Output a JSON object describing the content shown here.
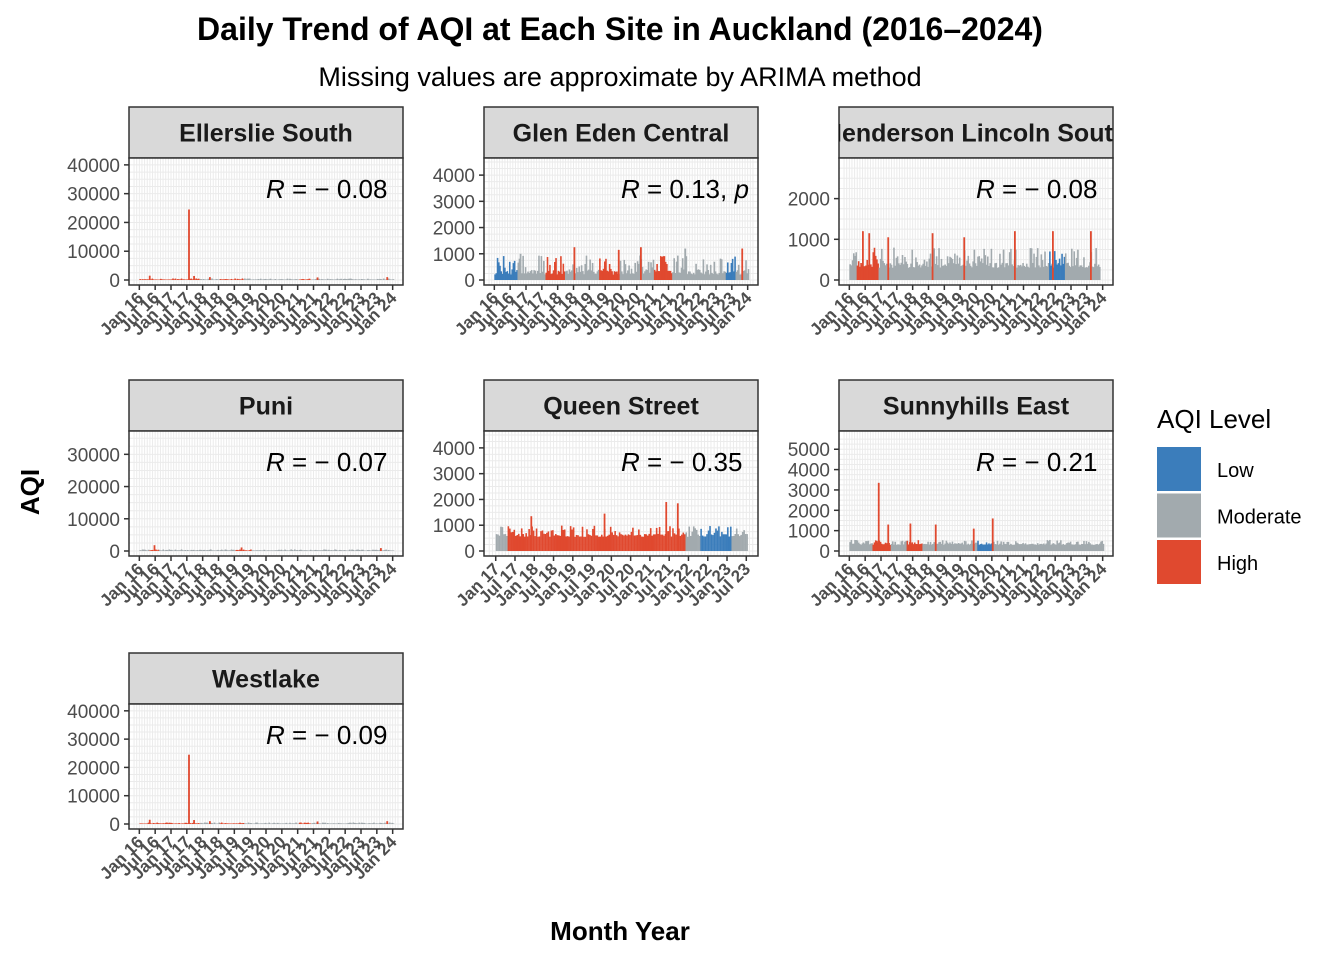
{
  "chart_data": {
    "type": "bar",
    "title": "Daily Trend of AQI at Each Site in Auckland (2016–2024)",
    "subtitle": "Missing values are approximate by ARIMA method",
    "xlabel": "Month Year",
    "ylabel": "AQI",
    "grid": true,
    "legend": {
      "title": "AQI Level",
      "placement": "right",
      "items": [
        {
          "label": "Low",
          "color": "#3b7dbb"
        },
        {
          "label": "Moderate",
          "color": "#a2aaae"
        },
        {
          "label": "High",
          "color": "#e0492f"
        }
      ]
    },
    "panels": [
      {
        "site": "Ellerslie South",
        "annotation": {
          "italic": "R",
          "rest": " = − 0.08"
        },
        "ylim": [
          0,
          41000
        ],
        "yticks": [
          0,
          10000,
          20000,
          30000,
          40000
        ],
        "xlim": [
          2015.8,
          2024.2
        ],
        "xticks": [
          "Jan 16",
          "Jul 16",
          "Jan 17",
          "Jul 17",
          "Jan 18",
          "Jul 18",
          "Jan 19",
          "Jul 19",
          "Jan 20",
          "Jul 20",
          "Jan 21",
          "Jul 21",
          "Jan 22",
          "Jul 22",
          "Jan 23",
          "Jul 23",
          "Jan 24"
        ],
        "xtick_start": 2016,
        "bars": {
          "start": 2016.0,
          "end": 2024.0,
          "baseline": 150,
          "spread": 400,
          "levels": [
            [
              2016.0,
              "high"
            ],
            [
              2017.9,
              "moderate"
            ],
            [
              2018.5,
              "high"
            ],
            [
              2019.3,
              "moderate"
            ],
            [
              2021.0,
              "high"
            ],
            [
              2021.4,
              "moderate"
            ]
          ],
          "spikes": [
            [
              2016.3,
              1500,
              "high"
            ],
            [
              2017.54,
              24500,
              "high"
            ],
            [
              2017.7,
              1400,
              "high"
            ],
            [
              2018.2,
              1000,
              "high"
            ],
            [
              2021.6,
              900,
              "high"
            ],
            [
              2023.8,
              1000,
              "high"
            ]
          ]
        }
      },
      {
        "site": "Glen Eden Central",
        "annotation": {
          "italic": "R",
          "rest": " = 0.13, ",
          "tail": "p"
        },
        "ylim": [
          0,
          4500
        ],
        "yticks": [
          0,
          1000,
          2000,
          3000,
          4000
        ],
        "xlim": [
          2015.8,
          2024.2
        ],
        "xticks": [
          "Jan 16",
          "Jul 16",
          "Jan 17",
          "Jul 17",
          "Jan 18",
          "Jul 18",
          "Jan 19",
          "Jul 19",
          "Jan 20",
          "Jul 20",
          "Jan 21",
          "Jul 21",
          "Jan 22",
          "Jul 22",
          "Jan 23",
          "Jul 23",
          "Jan 24"
        ],
        "xtick_start": 2016,
        "bars": {
          "start": 2016.0,
          "end": 2024.0,
          "baseline": 200,
          "spread": 750,
          "levels": [
            [
              2016.0,
              "low"
            ],
            [
              2016.7,
              "moderate"
            ],
            [
              2017.6,
              "high"
            ],
            [
              2018.2,
              "moderate"
            ],
            [
              2019.3,
              "high"
            ],
            [
              2019.9,
              "moderate"
            ],
            [
              2021.0,
              "high"
            ],
            [
              2021.6,
              "moderate"
            ],
            [
              2023.3,
              "low"
            ],
            [
              2023.6,
              "moderate"
            ]
          ],
          "spikes": [
            [
              2016.8,
              1000,
              "moderate"
            ],
            [
              2018.5,
              1250,
              "high"
            ],
            [
              2019.9,
              1150,
              "high"
            ],
            [
              2020.6,
              1250,
              "high"
            ],
            [
              2022.0,
              1200,
              "moderate"
            ],
            [
              2023.8,
              1200,
              "high"
            ]
          ]
        }
      },
      {
        "site": "Henderson Lincoln South",
        "annotation": {
          "italic": "R",
          "rest": " = − 0.08"
        },
        "ylim": [
          0,
          2900
        ],
        "yticks": [
          0,
          1000,
          2000
        ],
        "xlim": [
          2015.8,
          2024.2
        ],
        "xticks": [
          "Jan 16",
          "Jul 16",
          "Jan 17",
          "Jul 17",
          "Jan 18",
          "Jul 18",
          "Jan 19",
          "Jul 19",
          "Jan 20",
          "Jul 20",
          "Jan 21",
          "Jul 21",
          "Jan 22",
          "Jul 22",
          "Jan 23",
          "Jul 23",
          "Jan 24"
        ],
        "xtick_start": 2016,
        "bars": {
          "start": 2016.0,
          "end": 2023.9,
          "baseline": 300,
          "spread": 500,
          "levels": [
            [
              2016.0,
              "moderate"
            ],
            [
              2016.2,
              "high"
            ],
            [
              2016.9,
              "moderate"
            ],
            [
              2022.3,
              "low"
            ],
            [
              2022.8,
              "moderate"
            ]
          ],
          "spikes": [
            [
              2016.4,
              1200,
              "high"
            ],
            [
              2016.6,
              1150,
              "high"
            ],
            [
              2017.2,
              1050,
              "high"
            ],
            [
              2018.6,
              1150,
              "high"
            ],
            [
              2019.6,
              1050,
              "high"
            ],
            [
              2021.2,
              1200,
              "high"
            ],
            [
              2022.4,
              1200,
              "high"
            ],
            [
              2023.6,
              1200,
              "high"
            ]
          ]
        }
      },
      {
        "site": "Puni",
        "annotation": {
          "italic": "R",
          "rest": " = − 0.07"
        },
        "ylim": [
          0,
          36000
        ],
        "yticks": [
          0,
          10000,
          20000,
          30000
        ],
        "xlim": [
          2015.8,
          2024.2
        ],
        "xticks": [
          "Jan 16",
          "Jul 16",
          "Jan 17",
          "Jul 17",
          "Jan 18",
          "Jul 18",
          "Jan 19",
          "Jul 19",
          "Jan 20",
          "Jul 20",
          "Jan 21",
          "Jul 21",
          "Jan 22",
          "Jul 22",
          "Jan 23",
          "Jul 23",
          "Jan 24"
        ],
        "xtick_start": 2016,
        "bars": {
          "start": 2016.0,
          "end": 2024.0,
          "baseline": 150,
          "spread": 350,
          "levels": [
            [
              2016.0,
              "moderate"
            ],
            [
              2016.3,
              "high"
            ],
            [
              2016.6,
              "moderate"
            ],
            [
              2019.0,
              "high"
            ],
            [
              2019.5,
              "moderate"
            ]
          ],
          "spikes": [
            [
              2016.45,
              1800,
              "high"
            ],
            [
              2019.2,
              1100,
              "high"
            ],
            [
              2023.6,
              900,
              "high"
            ]
          ]
        }
      },
      {
        "site": "Queen Street",
        "annotation": {
          "italic": "R",
          "rest": " = − 0.35"
        },
        "ylim": [
          0,
          4500
        ],
        "yticks": [
          0,
          1000,
          2000,
          3000,
          4000
        ],
        "xlim": [
          2016.8,
          2023.7
        ],
        "xticks": [
          "Jan 17",
          "Jul 17",
          "Jan 18",
          "Jul 18",
          "Jan 19",
          "Jul 19",
          "Jan 20",
          "Jul 20",
          "Jan 21",
          "Jul 21",
          "Jan 22",
          "Jul 22",
          "Jan 23",
          "Jul 23"
        ],
        "xtick_start": 2017,
        "bars": {
          "start": 2017.0,
          "end": 2023.5,
          "baseline": 550,
          "spread": 450,
          "levels": [
            [
              2017.0,
              "moderate"
            ],
            [
              2017.3,
              "high"
            ],
            [
              2021.9,
              "moderate"
            ],
            [
              2022.3,
              "low"
            ],
            [
              2023.1,
              "moderate"
            ]
          ],
          "spikes": [
            [
              2017.9,
              1350,
              "high"
            ],
            [
              2019.8,
              1450,
              "high"
            ],
            [
              2021.4,
              1900,
              "high"
            ],
            [
              2021.7,
              1850,
              "high"
            ]
          ]
        }
      },
      {
        "site": "Sunnyhills East",
        "annotation": {
          "italic": "R",
          "rest": " = − 0.21"
        },
        "ylim": [
          0,
          5700
        ],
        "yticks": [
          0,
          1000,
          2000,
          3000,
          4000,
          5000
        ],
        "xlim": [
          2015.8,
          2024.2
        ],
        "xticks": [
          "Jan 16",
          "Jul 16",
          "Jan 17",
          "Jul 17",
          "Jan 18",
          "Jul 18",
          "Jan 19",
          "Jul 19",
          "Jan 20",
          "Jul 20",
          "Jan 21",
          "Jul 21",
          "Jan 22",
          "Jul 22",
          "Jan 23",
          "Jul 23",
          "Jan 24"
        ],
        "xtick_start": 2016,
        "bars": {
          "start": 2016.0,
          "end": 2024.0,
          "baseline": 300,
          "spread": 250,
          "levels": [
            [
              2016.0,
              "moderate"
            ],
            [
              2016.7,
              "high"
            ],
            [
              2017.3,
              "moderate"
            ],
            [
              2017.8,
              "high"
            ],
            [
              2018.3,
              "moderate"
            ],
            [
              2020.0,
              "low"
            ],
            [
              2020.5,
              "moderate"
            ]
          ],
          "spikes": [
            [
              2016.9,
              3350,
              "high"
            ],
            [
              2017.2,
              1300,
              "high"
            ],
            [
              2017.9,
              1350,
              "high"
            ],
            [
              2018.7,
              1300,
              "high"
            ],
            [
              2019.9,
              1100,
              "high"
            ],
            [
              2020.5,
              1600,
              "high"
            ]
          ]
        }
      },
      {
        "site": "Westlake",
        "annotation": {
          "italic": "R",
          "rest": " = − 0.09"
        },
        "ylim": [
          0,
          41000
        ],
        "yticks": [
          0,
          10000,
          20000,
          30000,
          40000
        ],
        "xlim": [
          2015.8,
          2024.2
        ],
        "xticks": [
          "Jan 16",
          "Jul 16",
          "Jan 17",
          "Jul 17",
          "Jan 18",
          "Jul 18",
          "Jan 19",
          "Jul 19",
          "Jan 20",
          "Jul 20",
          "Jan 21",
          "Jul 21",
          "Jan 22",
          "Jul 22",
          "Jan 23",
          "Jul 23",
          "Jan 24"
        ],
        "xtick_start": 2016,
        "bars": {
          "start": 2016.0,
          "end": 2024.0,
          "baseline": 150,
          "spread": 400,
          "levels": [
            [
              2016.0,
              "high"
            ],
            [
              2017.9,
              "moderate"
            ],
            [
              2018.5,
              "high"
            ],
            [
              2019.3,
              "moderate"
            ],
            [
              2021.0,
              "high"
            ],
            [
              2021.4,
              "moderate"
            ]
          ],
          "spikes": [
            [
              2016.3,
              1500,
              "high"
            ],
            [
              2017.54,
              24500,
              "high"
            ],
            [
              2017.7,
              1400,
              "high"
            ],
            [
              2018.2,
              1000,
              "high"
            ],
            [
              2021.6,
              900,
              "high"
            ],
            [
              2023.8,
              1000,
              "high"
            ]
          ]
        }
      }
    ]
  }
}
